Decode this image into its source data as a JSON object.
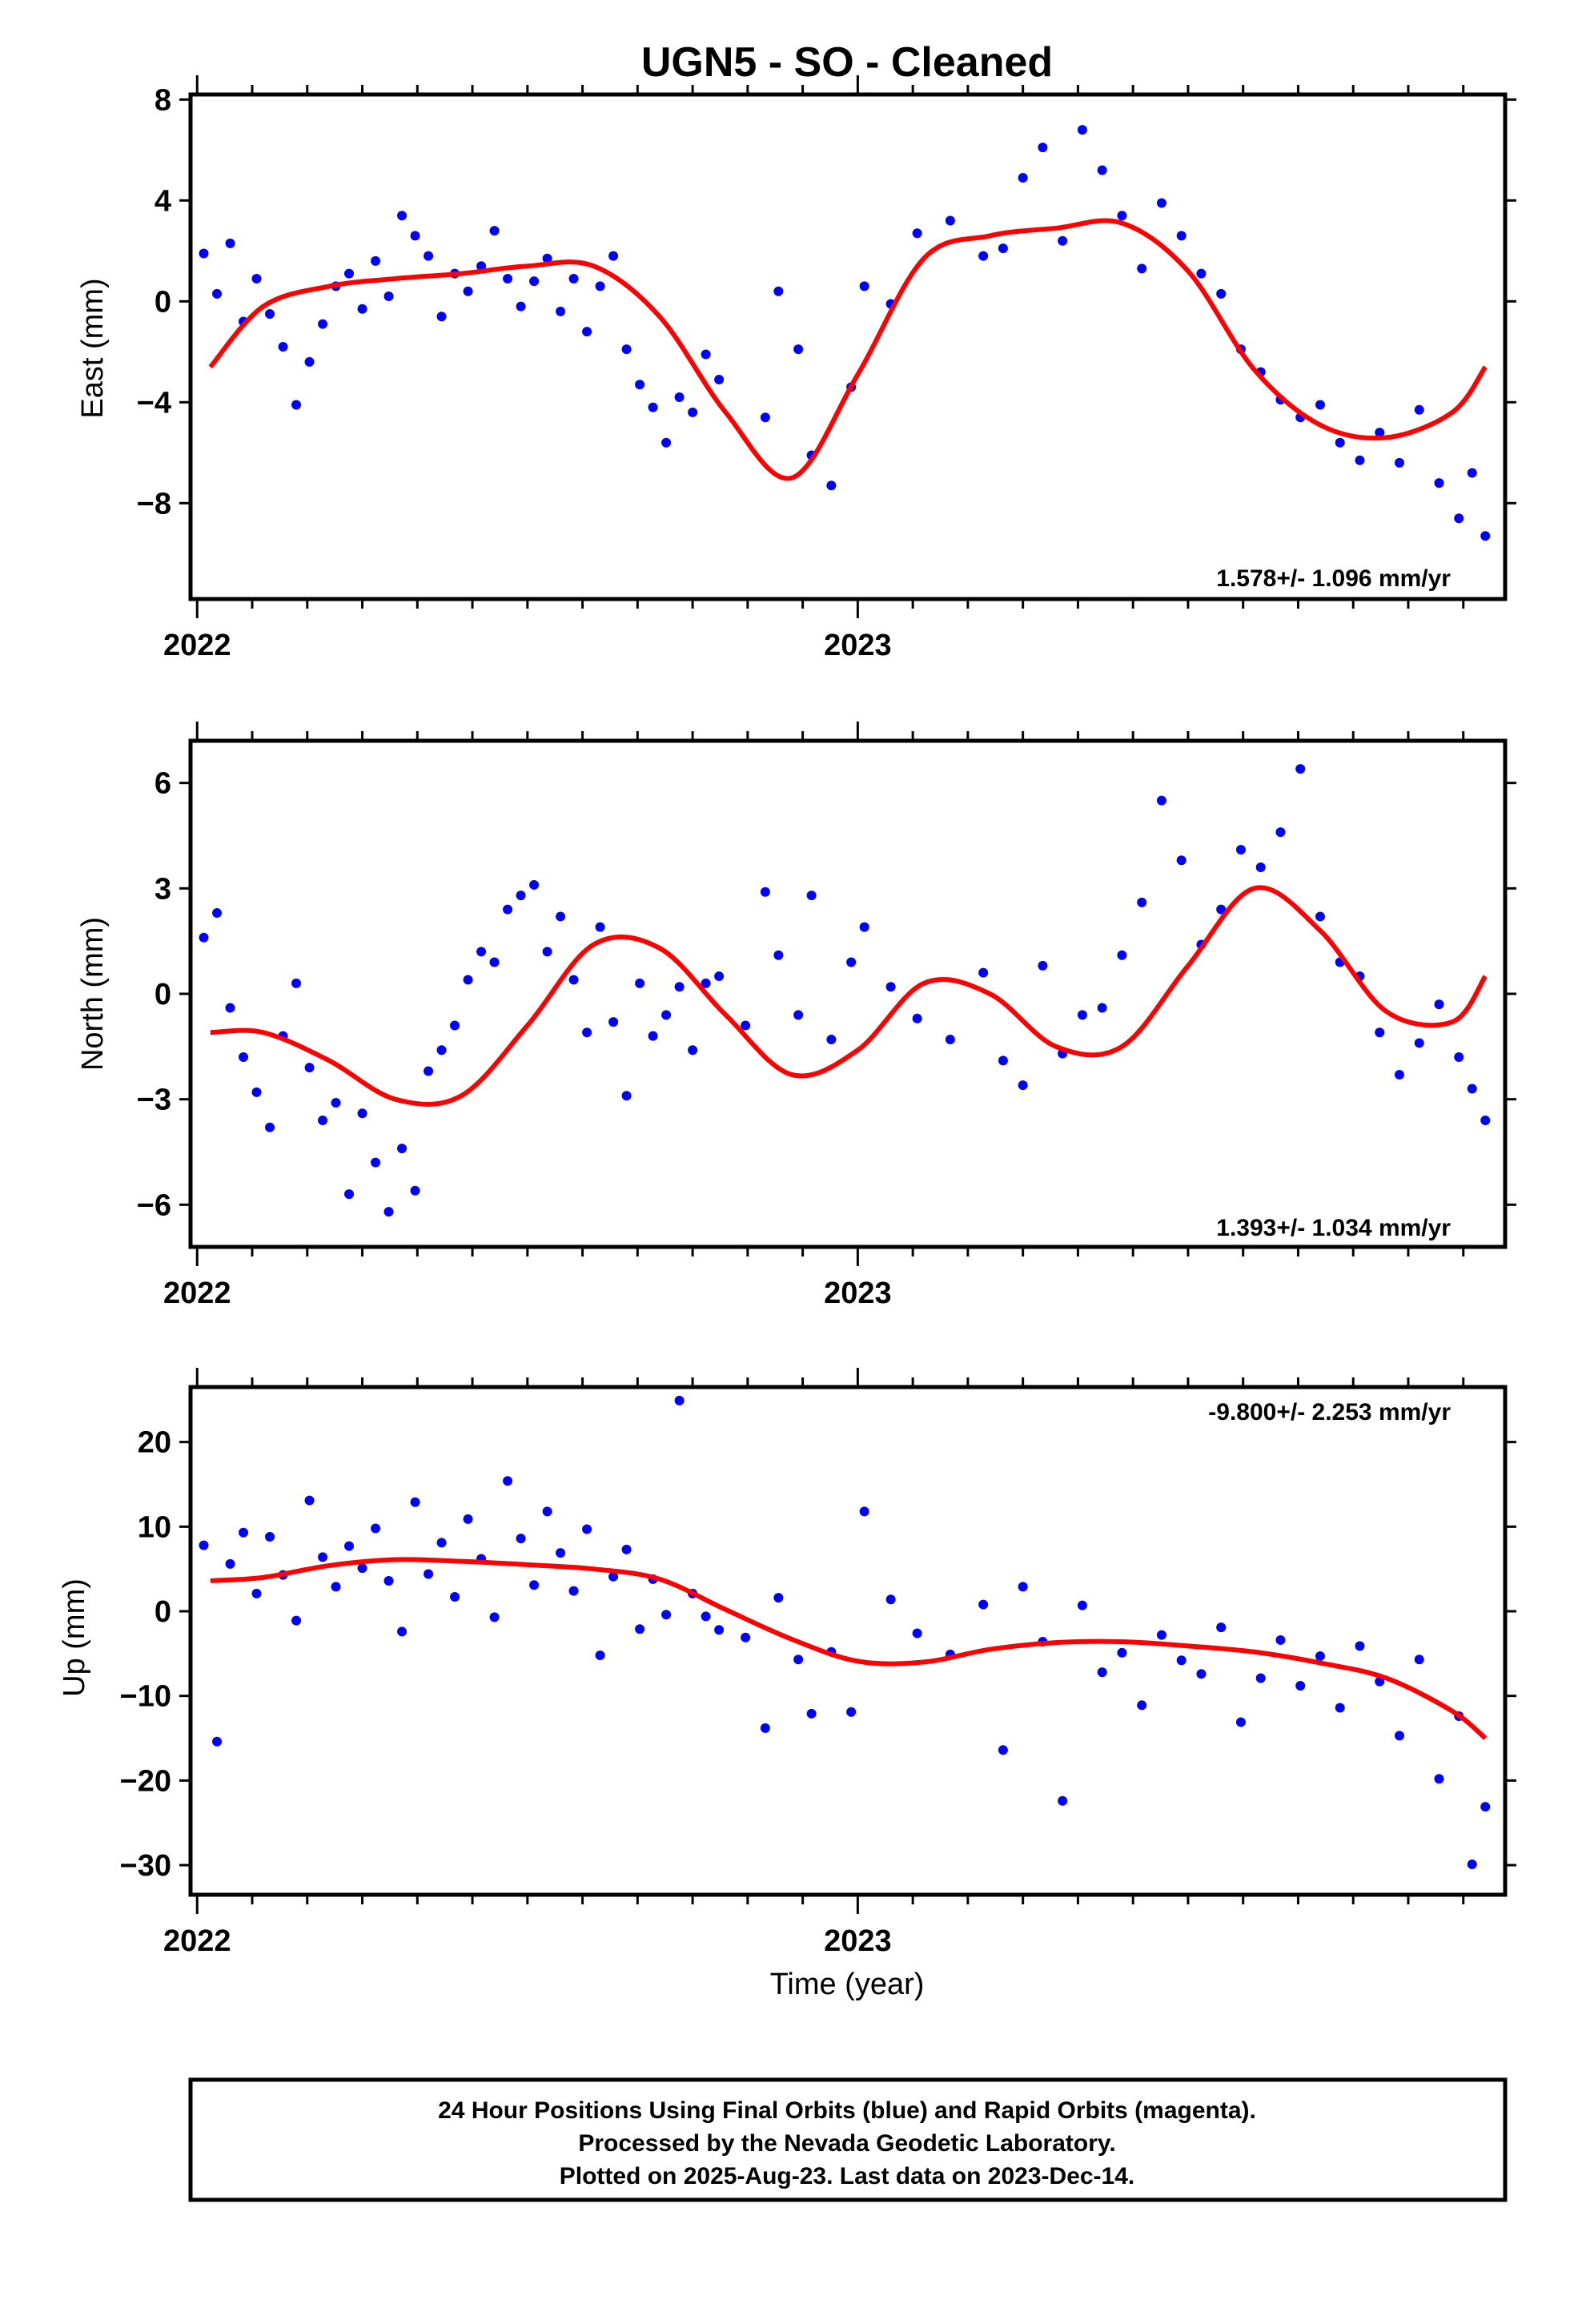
{
  "title": "UGN5  - SO - Cleaned",
  "xlabel": "Time (year)",
  "caption": [
    "24 Hour Positions Using Final Orbits (blue) and Rapid Orbits (magenta).",
    "Processed by the Nevada Geodetic Laboratory.",
    "Plotted on 2025-Aug-23. Last data on 2023-Dec-14."
  ],
  "colors": {
    "points": "#0000ff",
    "fit": "#ff0000",
    "frame": "#000000"
  },
  "chart_data": [
    {
      "type": "scatter",
      "ylabel": "East (mm)",
      "rate_label": "1.578+/- 1.096 mm/yr",
      "xlim": [
        2021.99,
        2023.98
      ],
      "ylim": [
        -11.8,
        8.2
      ],
      "xticks": [
        2022,
        2023
      ],
      "yticks": [
        8,
        4,
        0,
        -4,
        -8
      ],
      "ytick_labels": [
        "8",
        "4",
        "0",
        "−4",
        "−8"
      ],
      "series": [
        {
          "x": [
            2022.01,
            2022.03,
            2022.05,
            2022.07,
            2022.09,
            2022.11,
            2022.13,
            2022.15,
            2022.17,
            2022.19,
            2022.21,
            2022.23,
            2022.25,
            2022.27,
            2022.29,
            2022.31,
            2022.33,
            2022.35,
            2022.37,
            2022.39,
            2022.41,
            2022.43,
            2022.45,
            2022.47,
            2022.49,
            2022.51,
            2022.53,
            2022.55,
            2022.57,
            2022.59,
            2022.61,
            2022.63,
            2022.65,
            2022.67,
            2022.69,
            2022.71,
            2022.73,
            2022.75,
            2022.77,
            2022.79,
            2022.86,
            2022.88,
            2022.91,
            2022.93,
            2022.96,
            2022.99,
            2023.01,
            2023.05,
            2023.09,
            2023.14,
            2023.19,
            2023.22,
            2023.25,
            2023.28,
            2023.31,
            2023.34,
            2023.37,
            2023.4,
            2023.43,
            2023.46,
            2023.49,
            2023.52,
            2023.55,
            2023.58,
            2023.61,
            2023.64,
            2023.67,
            2023.7,
            2023.73,
            2023.76,
            2023.79,
            2023.82,
            2023.85,
            2023.88,
            2023.91,
            2023.93,
            2023.95
          ],
          "y": [
            1.9,
            0.3,
            2.3,
            -0.8,
            0.9,
            -0.5,
            -1.8,
            -4.1,
            -2.4,
            -0.9,
            0.6,
            1.1,
            -0.3,
            1.6,
            0.2,
            3.4,
            2.6,
            1.8,
            -0.6,
            1.1,
            0.4,
            1.4,
            2.8,
            0.9,
            -0.2,
            0.8,
            1.7,
            -0.4,
            0.9,
            -1.2,
            0.6,
            1.8,
            -1.9,
            -3.3,
            -4.2,
            -5.6,
            -3.8,
            -4.4,
            -2.1,
            -3.1,
            -4.6,
            0.4,
            -1.9,
            -6.1,
            -7.3,
            -3.4,
            0.6,
            -0.1,
            2.7,
            3.2,
            1.8,
            2.1,
            4.9,
            6.1,
            2.4,
            6.8,
            5.2,
            3.4,
            1.3,
            3.9,
            2.6,
            1.1,
            0.3,
            -1.9,
            -2.8,
            -3.9,
            -4.6,
            -4.1,
            -5.6,
            -6.3,
            -5.2,
            -6.4,
            -4.3,
            -7.2,
            -8.6,
            -6.8,
            -9.3
          ]
        },
        {
          "x": [
            2022.02,
            2022.1,
            2022.2,
            2022.3,
            2022.4,
            2022.5,
            2022.6,
            2022.7,
            2022.8,
            2022.9,
            2023.0,
            2023.1,
            2023.2,
            2023.3,
            2023.4,
            2023.5,
            2023.6,
            2023.7,
            2023.8,
            2023.9,
            2023.95
          ],
          "y": [
            -2.6,
            -0.2,
            0.6,
            0.9,
            1.1,
            1.4,
            1.4,
            -0.6,
            -4.4,
            -7.0,
            -2.9,
            1.7,
            2.6,
            2.9,
            3.1,
            1.2,
            -2.7,
            -4.9,
            -5.4,
            -4.4,
            -2.6
          ]
        }
      ]
    },
    {
      "type": "scatter",
      "ylabel": "North (mm)",
      "rate_label": "1.393+/- 1.034 mm/yr",
      "xlim": [
        2021.99,
        2023.98
      ],
      "ylim": [
        -7.2,
        7.2
      ],
      "xticks": [
        2022,
        2023
      ],
      "yticks": [
        6,
        3,
        0,
        -3,
        -6
      ],
      "ytick_labels": [
        "6",
        "3",
        "0",
        "−3",
        "−6"
      ],
      "series": [
        {
          "x": [
            2022.01,
            2022.03,
            2022.05,
            2022.07,
            2022.09,
            2022.11,
            2022.13,
            2022.15,
            2022.17,
            2022.19,
            2022.21,
            2022.23,
            2022.25,
            2022.27,
            2022.29,
            2022.31,
            2022.33,
            2022.35,
            2022.37,
            2022.39,
            2022.41,
            2022.43,
            2022.45,
            2022.47,
            2022.49,
            2022.51,
            2022.53,
            2022.55,
            2022.57,
            2022.59,
            2022.61,
            2022.63,
            2022.65,
            2022.67,
            2022.69,
            2022.71,
            2022.73,
            2022.75,
            2022.77,
            2022.79,
            2022.83,
            2022.86,
            2022.88,
            2022.91,
            2022.93,
            2022.96,
            2022.99,
            2023.01,
            2023.05,
            2023.09,
            2023.14,
            2023.19,
            2023.22,
            2023.25,
            2023.28,
            2023.31,
            2023.34,
            2023.37,
            2023.4,
            2023.43,
            2023.46,
            2023.49,
            2023.52,
            2023.55,
            2023.58,
            2023.61,
            2023.64,
            2023.67,
            2023.7,
            2023.73,
            2023.76,
            2023.79,
            2023.82,
            2023.85,
            2023.88,
            2023.91,
            2023.93,
            2023.95
          ],
          "y": [
            1.6,
            2.3,
            -0.4,
            -1.8,
            -2.8,
            -3.8,
            -1.2,
            0.3,
            -2.1,
            -3.6,
            -3.1,
            -5.7,
            -3.4,
            -4.8,
            -6.2,
            -4.4,
            -5.6,
            -2.2,
            -1.6,
            -0.9,
            0.4,
            1.2,
            0.9,
            2.4,
            2.8,
            3.1,
            1.2,
            2.2,
            0.4,
            -1.1,
            1.9,
            -0.8,
            -2.9,
            0.3,
            -1.2,
            -0.6,
            0.2,
            -1.6,
            0.3,
            0.5,
            -0.9,
            2.9,
            1.1,
            -0.6,
            2.8,
            -1.3,
            0.9,
            1.9,
            0.2,
            -0.7,
            -1.3,
            0.6,
            -1.9,
            -2.6,
            0.8,
            -1.7,
            -0.6,
            -0.4,
            1.1,
            2.6,
            5.5,
            3.8,
            1.4,
            2.4,
            4.1,
            3.6,
            4.6,
            6.4,
            2.2,
            0.9,
            0.5,
            -1.1,
            -2.3,
            -1.4,
            -0.3,
            -1.8,
            -2.7,
            -3.6
          ]
        },
        {
          "x": [
            2022.02,
            2022.1,
            2022.2,
            2022.3,
            2022.4,
            2022.5,
            2022.6,
            2022.7,
            2022.8,
            2022.9,
            2023.0,
            2023.1,
            2023.2,
            2023.3,
            2023.4,
            2023.5,
            2023.6,
            2023.7,
            2023.8,
            2023.9,
            2023.95
          ],
          "y": [
            -1.1,
            -1.1,
            -1.9,
            -3.0,
            -2.9,
            -0.9,
            1.4,
            1.3,
            -0.6,
            -2.3,
            -1.6,
            0.3,
            0.0,
            -1.5,
            -1.5,
            0.8,
            3.0,
            1.8,
            -0.5,
            -0.8,
            0.5
          ]
        }
      ]
    },
    {
      "type": "scatter",
      "ylabel": "Up (mm)",
      "rate_label": "-9.800+/- 2.253 mm/yr",
      "xlim": [
        2021.99,
        2023.98
      ],
      "ylim": [
        -33.5,
        26.5
      ],
      "xticks": [
        2022,
        2023
      ],
      "yticks": [
        20,
        10,
        0,
        -10,
        -20,
        -30
      ],
      "ytick_labels": [
        "20",
        "10",
        "0",
        "−10",
        "−20",
        "−30"
      ],
      "series": [
        {
          "x": [
            2022.01,
            2022.03,
            2022.05,
            2022.07,
            2022.09,
            2022.11,
            2022.13,
            2022.15,
            2022.17,
            2022.19,
            2022.21,
            2022.23,
            2022.25,
            2022.27,
            2022.29,
            2022.31,
            2022.33,
            2022.35,
            2022.37,
            2022.39,
            2022.41,
            2022.43,
            2022.45,
            2022.47,
            2022.49,
            2022.51,
            2022.53,
            2022.55,
            2022.57,
            2022.59,
            2022.61,
            2022.63,
            2022.65,
            2022.67,
            2022.69,
            2022.71,
            2022.73,
            2022.75,
            2022.77,
            2022.79,
            2022.83,
            2022.86,
            2022.88,
            2022.91,
            2022.93,
            2022.96,
            2022.99,
            2023.01,
            2023.05,
            2023.09,
            2023.14,
            2023.19,
            2023.22,
            2023.25,
            2023.28,
            2023.31,
            2023.34,
            2023.37,
            2023.4,
            2023.43,
            2023.46,
            2023.49,
            2023.52,
            2023.55,
            2023.58,
            2023.61,
            2023.64,
            2023.67,
            2023.7,
            2023.73,
            2023.76,
            2023.79,
            2023.82,
            2023.85,
            2023.88,
            2023.91,
            2023.93,
            2023.95
          ],
          "y": [
            7.8,
            -15.4,
            5.6,
            9.3,
            2.1,
            8.8,
            4.3,
            -1.1,
            13.1,
            6.4,
            2.9,
            7.7,
            5.1,
            9.8,
            3.6,
            -2.4,
            12.9,
            4.4,
            8.1,
            1.7,
            10.9,
            6.2,
            -0.7,
            15.4,
            8.6,
            3.1,
            11.8,
            6.9,
            2.4,
            9.7,
            -5.2,
            4.1,
            7.3,
            -2.1,
            3.8,
            -0.4,
            24.9,
            2.1,
            -0.6,
            -2.2,
            -3.1,
            -13.8,
            1.6,
            -5.7,
            -12.1,
            -4.8,
            -11.9,
            11.8,
            1.4,
            -2.6,
            -5.1,
            0.8,
            -16.4,
            2.9,
            -3.6,
            -22.4,
            0.7,
            -7.2,
            -4.9,
            -11.1,
            -2.8,
            -5.8,
            -7.4,
            -1.9,
            -13.1,
            -7.9,
            -3.4,
            -8.8,
            -5.3,
            -11.4,
            -4.1,
            -8.3,
            -14.7,
            -5.7,
            -19.8,
            -12.4,
            -29.9,
            -23.1
          ]
        },
        {
          "x": [
            2022.02,
            2022.1,
            2022.2,
            2022.3,
            2022.4,
            2022.5,
            2022.6,
            2022.7,
            2022.8,
            2022.9,
            2023.0,
            2023.1,
            2023.2,
            2023.3,
            2023.4,
            2023.5,
            2023.6,
            2023.7,
            2023.8,
            2023.9,
            2023.95
          ],
          "y": [
            3.6,
            4.0,
            5.4,
            6.1,
            5.9,
            5.5,
            5.0,
            3.8,
            0.2,
            -3.3,
            -5.9,
            -6.0,
            -4.5,
            -3.7,
            -3.6,
            -4.1,
            -4.8,
            -6.1,
            -7.9,
            -11.8,
            -15.0
          ]
        }
      ]
    }
  ]
}
